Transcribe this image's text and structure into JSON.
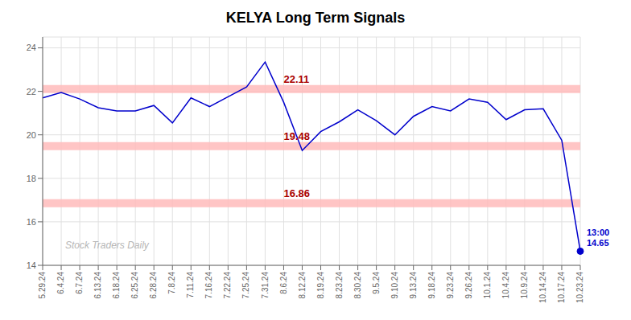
{
  "chart_data": {
    "type": "line",
    "title": "KELYA Long Term Signals",
    "categories": [
      "5.29.24",
      "6.4.24",
      "6.7.24",
      "6.13.24",
      "6.18.24",
      "6.25.24",
      "6.28.24",
      "7.8.24",
      "7.11.24",
      "7.16.24",
      "7.22.24",
      "7.25.24",
      "7.31.24",
      "8.6.24",
      "8.12.24",
      "8.19.24",
      "8.23.24",
      "8.30.24",
      "9.5.24",
      "9.10.24",
      "9.13.24",
      "9.18.24",
      "9.23.24",
      "9.26.24",
      "10.1.24",
      "10.4.24",
      "10.9.24",
      "10.14.24",
      "10.17.24",
      "10.23.24"
    ],
    "values": [
      21.7,
      21.95,
      21.65,
      21.25,
      21.1,
      21.1,
      21.35,
      20.55,
      21.7,
      21.3,
      21.75,
      22.2,
      23.35,
      21.5,
      19.28,
      20.15,
      20.6,
      21.15,
      20.65,
      20.0,
      20.85,
      21.3,
      21.1,
      21.65,
      21.5,
      20.7,
      21.15,
      21.2,
      19.75,
      14.65
    ],
    "color": "#0000cc",
    "ylim": [
      14,
      24.5
    ],
    "yticks": [
      14,
      16,
      18,
      20,
      22,
      24
    ],
    "grid": true,
    "hlines": [
      {
        "y": 22.11,
        "label": "22.11",
        "color": "#aa0000",
        "x": "8.6.24"
      },
      {
        "y": 19.48,
        "label": "19.48",
        "color": "#aa0000",
        "x": "8.6.24"
      },
      {
        "y": 16.86,
        "label": "16.86",
        "color": "#aa0000",
        "x": "8.6.24"
      }
    ],
    "band_color": "#ffbbbb",
    "annotations": [
      {
        "text": "13:00"
      },
      {
        "text": "14.65"
      }
    ],
    "watermark": "Stock Traders Daily",
    "watermark_color": "#aaaaaa"
  }
}
